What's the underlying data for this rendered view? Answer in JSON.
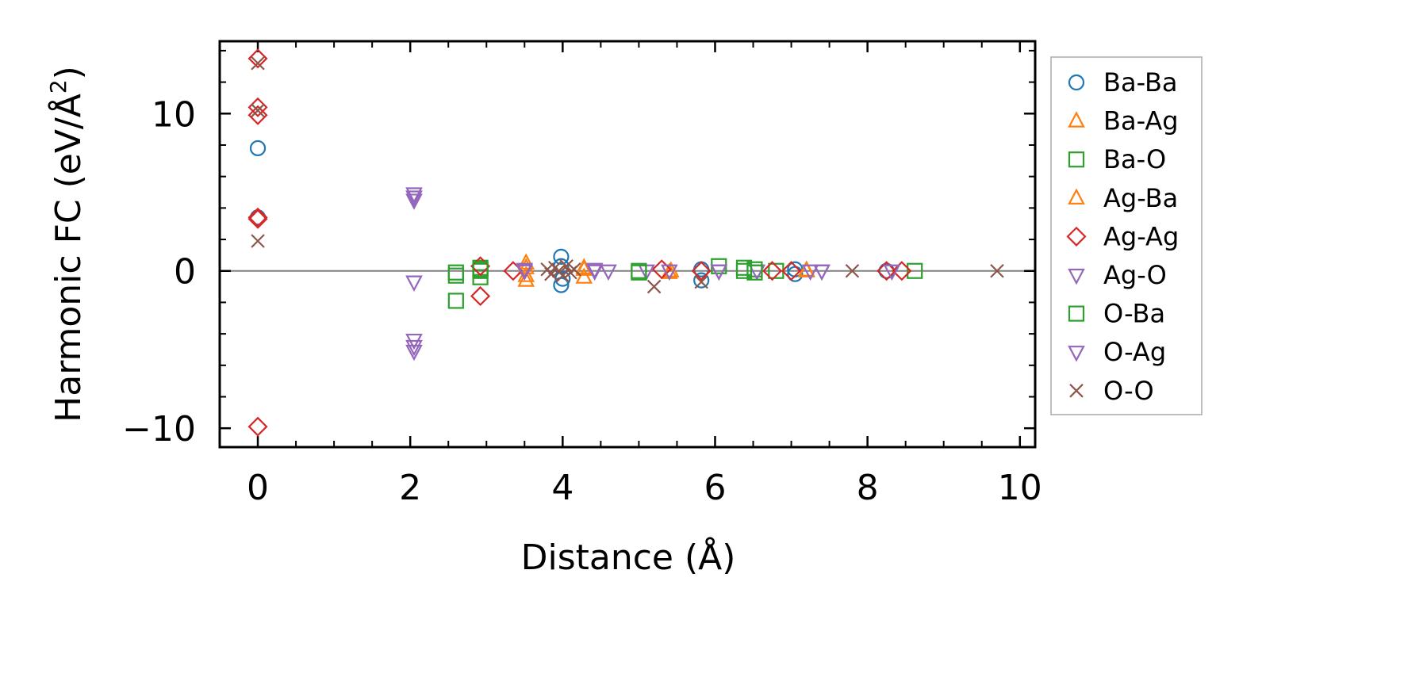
{
  "chart_data": {
    "type": "scatter",
    "xlabel": "Distance (Å)",
    "ylabel_main": "Harmonic FC (eV/Å",
    "ylabel_sup": "2",
    "ylabel_end": ")",
    "xlim": [
      -0.5,
      10.2
    ],
    "ylim": [
      -11.2,
      14.6
    ],
    "xticks": [
      0,
      2,
      4,
      6,
      8,
      10
    ],
    "xtick_labels": [
      "0",
      "2",
      "4",
      "6",
      "8",
      "10"
    ],
    "yticks": [
      -10,
      0,
      10
    ],
    "ytick_labels": [
      "−10",
      "0",
      "10"
    ],
    "zero_line": true,
    "grid": false,
    "legend_position": "outside-right",
    "series": [
      {
        "name": "Ba-Ba",
        "marker": "circle",
        "color": "#1f77b4",
        "x": [
          0,
          0,
          3.98,
          3.98,
          3.98,
          4.0,
          5.82,
          5.82,
          7.05,
          7.05,
          8.25
        ],
        "y": [
          7.8,
          3.4,
          0.9,
          0.3,
          -0.9,
          -0.5,
          0.1,
          -0.6,
          0.1,
          -0.2,
          0.0
        ]
      },
      {
        "name": "Ba-Ag",
        "marker": "triangle-up",
        "color": "#ff7f0e",
        "x": [
          3.52,
          3.52,
          3.52,
          4.28,
          4.28,
          5.4,
          7.2
        ],
        "y": [
          0.5,
          -0.3,
          -0.6,
          0.2,
          -0.4,
          -0.1,
          0.0
        ]
      },
      {
        "name": "Ba-O",
        "marker": "square",
        "color": "#2ca02c",
        "x": [
          2.6,
          2.6,
          2.6,
          2.92,
          2.92,
          2.92,
          5.0,
          6.05,
          6.38,
          6.52,
          6.8,
          8.62
        ],
        "y": [
          -0.1,
          -0.3,
          -1.9,
          0.2,
          0.0,
          -0.4,
          0.0,
          0.3,
          0.2,
          0.1,
          0.0,
          0.0
        ]
      },
      {
        "name": "Ag-Ba",
        "marker": "triangle-up",
        "color": "#ff7f0e",
        "x": [
          3.52,
          4.28,
          5.42,
          7.2
        ],
        "y": [
          0.2,
          0.1,
          0.0,
          0.05
        ]
      },
      {
        "name": "Ag-Ag",
        "marker": "diamond",
        "color": "#d62728",
        "x": [
          0,
          0,
          0,
          0,
          0,
          0,
          2.92,
          2.92,
          3.35,
          5.3,
          5.82,
          6.75,
          7.0,
          8.25,
          8.45
        ],
        "y": [
          13.5,
          10.4,
          9.9,
          3.4,
          3.3,
          -9.9,
          0.3,
          -1.6,
          0.0,
          0.1,
          0.0,
          0.0,
          0.0,
          0.0,
          0.0
        ]
      },
      {
        "name": "Ag-O",
        "marker": "triangle-down",
        "color": "#9467bd",
        "x": [
          2.05,
          2.05,
          2.05,
          2.05,
          2.05,
          2.05,
          3.5,
          4.42,
          4.6,
          5.1,
          5.4,
          6.05,
          6.55,
          7.25,
          7.4,
          8.32
        ],
        "y": [
          4.9,
          4.5,
          -0.7,
          -4.4,
          -4.8,
          -5.1,
          0.1,
          0.1,
          0.0,
          0.0,
          0.0,
          0.0,
          0.0,
          0.0,
          0.0,
          0.0
        ]
      },
      {
        "name": "O-Ba",
        "marker": "square",
        "color": "#2ca02c",
        "x": [
          2.92,
          5.0,
          6.38,
          6.52
        ],
        "y": [
          0.1,
          -0.1,
          0.0,
          -0.1
        ]
      },
      {
        "name": "O-Ag",
        "marker": "triangle-down",
        "color": "#9467bd",
        "x": [
          2.05,
          3.5,
          4.42,
          6.05,
          7.4
        ],
        "y": [
          4.7,
          0.0,
          0.0,
          0.0,
          0.0
        ]
      },
      {
        "name": "O-O",
        "marker": "x",
        "color": "#8c564b",
        "x": [
          0,
          0,
          0,
          3.8,
          3.85,
          3.9,
          3.95,
          4.0,
          4.05,
          4.1,
          4.15,
          5.2,
          5.82,
          7.8,
          9.7
        ],
        "y": [
          13.2,
          10.2,
          1.9,
          0.1,
          -0.2,
          0.2,
          0.0,
          -0.3,
          0.3,
          -0.1,
          0.1,
          -1.0,
          -0.7,
          0.0,
          0.0
        ]
      }
    ]
  }
}
